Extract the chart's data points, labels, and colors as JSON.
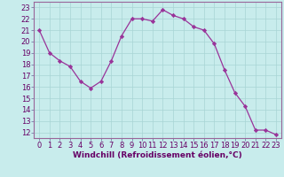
{
  "x": [
    0,
    1,
    2,
    3,
    4,
    5,
    6,
    7,
    8,
    9,
    10,
    11,
    12,
    13,
    14,
    15,
    16,
    17,
    18,
    19,
    20,
    21,
    22,
    23
  ],
  "y": [
    21.0,
    19.0,
    18.3,
    17.8,
    16.5,
    15.9,
    16.5,
    18.3,
    20.5,
    22.0,
    22.0,
    21.8,
    22.8,
    22.3,
    22.0,
    21.3,
    21.0,
    19.8,
    17.5,
    15.5,
    14.3,
    12.2,
    12.2,
    11.8
  ],
  "line_color": "#993399",
  "marker": "D",
  "marker_size": 2.2,
  "bg_color": "#c8ecec",
  "grid_color": "#a8d4d4",
  "xlabel": "Windchill (Refroidissement éolien,°C)",
  "xlim": [
    -0.5,
    23.5
  ],
  "ylim": [
    11.5,
    23.5
  ],
  "yticks": [
    12,
    13,
    14,
    15,
    16,
    17,
    18,
    19,
    20,
    21,
    22,
    23
  ],
  "xticks": [
    0,
    1,
    2,
    3,
    4,
    5,
    6,
    7,
    8,
    9,
    10,
    11,
    12,
    13,
    14,
    15,
    16,
    17,
    18,
    19,
    20,
    21,
    22,
    23
  ],
  "xlabel_fontsize": 6.5,
  "tick_fontsize": 6.0
}
